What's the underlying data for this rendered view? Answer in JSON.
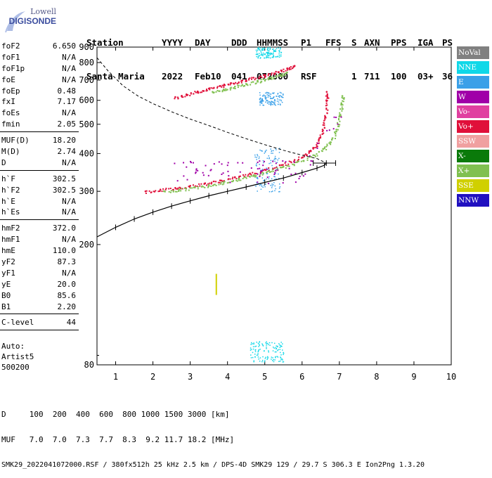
{
  "logo": {
    "top": "Lowell",
    "main": "DIGISONDE"
  },
  "header": {
    "labels": [
      "Station",
      "YYYY",
      "DAY",
      "DDD",
      "HHMMSS",
      "P1",
      "FFS",
      "S",
      "AXN",
      "PPS",
      "IGA",
      "PS"
    ],
    "values": [
      "Santa Maria",
      "2022",
      "Feb10",
      "041",
      "072000",
      "RSF",
      "",
      "1",
      "711",
      "100",
      "03+",
      "36"
    ]
  },
  "parameters": [
    {
      "name": "foF2",
      "value": "6.650"
    },
    {
      "name": "foF1",
      "value": "N/A"
    },
    {
      "name": "foF1p",
      "value": "N/A"
    },
    {
      "name": "foE",
      "value": "N/A"
    },
    {
      "name": "foEp",
      "value": "0.48"
    },
    {
      "name": "fxI",
      "value": "7.17"
    },
    {
      "name": "foEs",
      "value": "N/A"
    },
    {
      "name": "fmin",
      "value": "2.05"
    },
    {
      "sep": true
    },
    {
      "name": "MUF(D)",
      "value": "18.20"
    },
    {
      "name": "M(D)",
      "value": "2.74"
    },
    {
      "name": "D",
      "value": "N/A"
    },
    {
      "sep": true
    },
    {
      "name": "h`F",
      "value": "302.5"
    },
    {
      "name": "h`F2",
      "value": "302.5"
    },
    {
      "name": "h`E",
      "value": "N/A"
    },
    {
      "name": "h`Es",
      "value": "N/A"
    },
    {
      "sep": true
    },
    {
      "name": "hmF2",
      "value": "372.0"
    },
    {
      "name": "hmF1",
      "value": "N/A"
    },
    {
      "name": "hmE",
      "value": "110.0"
    },
    {
      "name": "yF2",
      "value": "87.3"
    },
    {
      "name": "yF1",
      "value": "N/A"
    },
    {
      "name": "yE",
      "value": "20.0"
    },
    {
      "name": "B0",
      "value": "85.6"
    },
    {
      "name": "B1",
      "value": "2.20"
    },
    {
      "sep": true
    },
    {
      "name": "C-level",
      "value": "44"
    },
    {
      "sep": true
    }
  ],
  "auto": {
    "line1": "Auto:",
    "line2": "Artist5",
    "line3": "500200"
  },
  "legend": [
    {
      "label": "NoVal",
      "color": "#808080"
    },
    {
      "label": "NNE",
      "color": "#10d8e8"
    },
    {
      "label": "E",
      "color": "#3aa0e8"
    },
    {
      "label": "W",
      "color": "#a000a8"
    },
    {
      "label": "Vo-",
      "color": "#e040a0"
    },
    {
      "label": "Vo+",
      "color": "#e0103a"
    },
    {
      "label": "SSW",
      "color": "#f0a0a0"
    },
    {
      "label": "X-",
      "color": "#0a7a0a"
    },
    {
      "label": "X+",
      "color": "#80c050"
    },
    {
      "label": "SSE",
      "color": "#d0d000"
    },
    {
      "label": "NNW",
      "color": "#2010c0"
    }
  ],
  "footer": {
    "d_row": "D     100  200  400  600  800 1000 1500 3000 [km]",
    "muf_row": "MUF   7.0  7.0  7.3  7.7  8.3  9.2 11.7 18.2 [MHz]",
    "file_row": "SMK29_2022041072000.RSF / 380fx512h 25 kHz 2.5 km / DPS-4D SMK29 129 / 29.7 S 306.3 E Ion2Png 1.3.20"
  },
  "chart_data": {
    "type": "scatter",
    "xlabel": "",
    "ylabel": "",
    "xlim": [
      0.5,
      10
    ],
    "ylim": [
      80,
      900
    ],
    "xticks": [
      1,
      2,
      3,
      4,
      5,
      6,
      7,
      8,
      9,
      10
    ],
    "yticks": [
      80,
      200,
      300,
      400,
      500,
      600,
      700,
      800,
      900
    ],
    "log_y": true,
    "series": [
      {
        "name": "Vo+",
        "color": "#e0103a",
        "points": [
          [
            1.8,
            300
          ],
          [
            2.2,
            304
          ],
          [
            2.6,
            308
          ],
          [
            3.0,
            313
          ],
          [
            3.4,
            319
          ],
          [
            3.8,
            326
          ],
          [
            4.2,
            334
          ],
          [
            4.6,
            343
          ],
          [
            5.0,
            354
          ],
          [
            5.4,
            366
          ],
          [
            5.8,
            381
          ],
          [
            6.1,
            398
          ],
          [
            6.3,
            418
          ],
          [
            6.45,
            445
          ],
          [
            6.55,
            480
          ],
          [
            6.62,
            530
          ],
          [
            6.65,
            600
          ],
          [
            6.66,
            640
          ]
        ]
      },
      {
        "name": "X+",
        "color": "#80c050",
        "points": [
          [
            2.3,
            300
          ],
          [
            2.7,
            304
          ],
          [
            3.1,
            309
          ],
          [
            3.5,
            315
          ],
          [
            3.9,
            322
          ],
          [
            4.3,
            330
          ],
          [
            4.7,
            339
          ],
          [
            5.1,
            350
          ],
          [
            5.5,
            362
          ],
          [
            5.9,
            377
          ],
          [
            6.3,
            395
          ],
          [
            6.6,
            416
          ],
          [
            6.8,
            445
          ],
          [
            6.92,
            480
          ],
          [
            7.0,
            530
          ],
          [
            7.05,
            580
          ],
          [
            7.08,
            620
          ]
        ]
      },
      {
        "name": "Vo+ (2 hop)",
        "color": "#e0103a",
        "points": [
          [
            2.6,
            615
          ],
          [
            2.9,
            628
          ],
          [
            3.2,
            642
          ],
          [
            3.5,
            656
          ],
          [
            3.8,
            670
          ],
          [
            4.1,
            684
          ],
          [
            4.4,
            698
          ],
          [
            4.7,
            713
          ],
          [
            5.0,
            729
          ],
          [
            5.3,
            746
          ],
          [
            5.6,
            765
          ],
          [
            5.8,
            780
          ]
        ]
      },
      {
        "name": "X+ (2 hop)",
        "color": "#80c050",
        "points": [
          [
            3.6,
            640
          ],
          [
            3.9,
            652
          ],
          [
            4.2,
            666
          ],
          [
            4.5,
            680
          ],
          [
            4.8,
            695
          ],
          [
            5.1,
            710
          ],
          [
            5.4,
            728
          ],
          [
            5.6,
            742
          ]
        ]
      }
    ],
    "profile_curve": [
      [
        0.5,
        212
      ],
      [
        1.0,
        228
      ],
      [
        1.5,
        243
      ],
      [
        2.0,
        256
      ],
      [
        2.5,
        268
      ],
      [
        3.0,
        279
      ],
      [
        3.5,
        290
      ],
      [
        4.0,
        300
      ],
      [
        4.5,
        310
      ],
      [
        5.0,
        321
      ],
      [
        5.5,
        332
      ],
      [
        6.0,
        346
      ],
      [
        6.4,
        358
      ],
      [
        6.6,
        366
      ],
      [
        6.65,
        372
      ]
    ],
    "profile_errorbar": {
      "x": [
        6.3,
        6.9
      ],
      "y": 372
    },
    "dashed_curve": [
      [
        0.5,
        830
      ],
      [
        0.8,
        750
      ],
      [
        1.2,
        670
      ],
      [
        1.6,
        620
      ],
      [
        2.0,
        585
      ],
      [
        2.5,
        550
      ],
      [
        3.0,
        520
      ],
      [
        3.5,
        495
      ],
      [
        4.0,
        470
      ],
      [
        4.5,
        448
      ],
      [
        5.0,
        428
      ],
      [
        5.5,
        410
      ],
      [
        6.0,
        395
      ],
      [
        6.4,
        385
      ],
      [
        6.65,
        372
      ]
    ],
    "fmin": 2.05,
    "foF2": 6.65
  }
}
